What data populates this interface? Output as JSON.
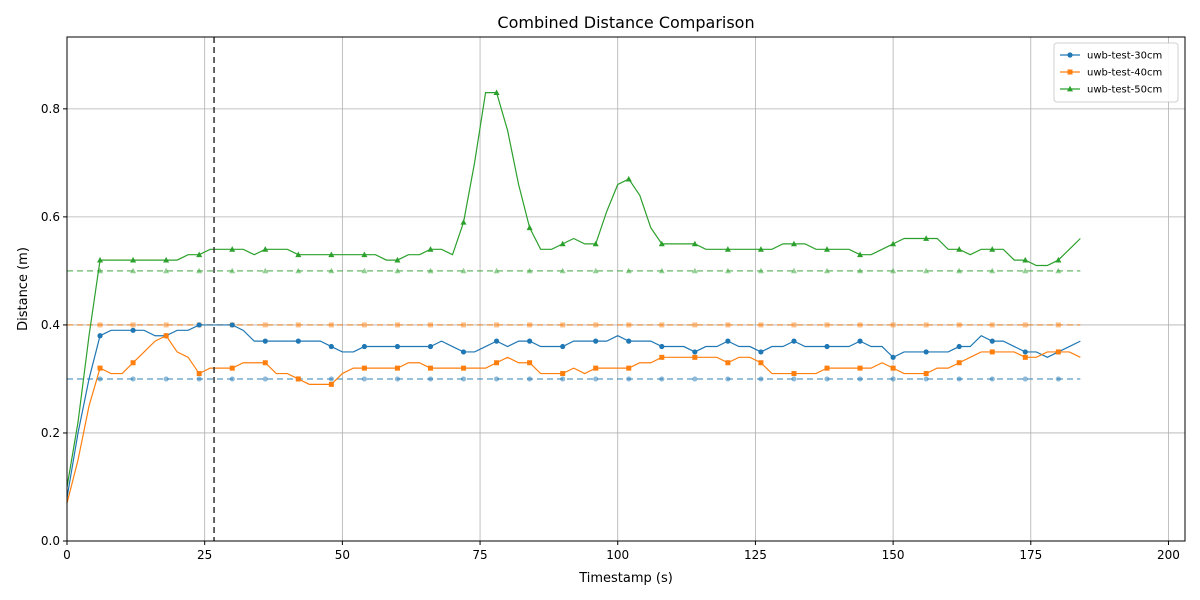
{
  "chart_data": {
    "type": "line",
    "title": "Combined Distance Comparison",
    "x_label": "Timestamp (s)",
    "y_label": "Distance (m)",
    "x": [
      0,
      2,
      4,
      6,
      8,
      10,
      12,
      14,
      16,
      18,
      20,
      22,
      24,
      26,
      28,
      30,
      32,
      34,
      36,
      38,
      40,
      42,
      44,
      46,
      48,
      50,
      52,
      54,
      56,
      58,
      60,
      62,
      64,
      66,
      68,
      70,
      72,
      74,
      76,
      78,
      80,
      82,
      84,
      86,
      88,
      90,
      92,
      94,
      96,
      98,
      100,
      102,
      104,
      106,
      108,
      110,
      112,
      114,
      116,
      118,
      120,
      122,
      124,
      126,
      128,
      130,
      132,
      134,
      136,
      138,
      140,
      142,
      144,
      146,
      148,
      150,
      152,
      154,
      156,
      158,
      160,
      162,
      164,
      166,
      168,
      170,
      172,
      174,
      176,
      178,
      180,
      182,
      184
    ],
    "series": [
      {
        "name": "uwb-test-30cm",
        "color": "#1f77b4",
        "marker": "circle",
        "values": [
          0.08,
          0.2,
          0.3,
          0.38,
          0.39,
          0.39,
          0.39,
          0.39,
          0.38,
          0.38,
          0.39,
          0.39,
          0.4,
          0.4,
          0.4,
          0.4,
          0.39,
          0.37,
          0.37,
          0.37,
          0.37,
          0.37,
          0.37,
          0.37,
          0.36,
          0.35,
          0.35,
          0.36,
          0.36,
          0.36,
          0.36,
          0.36,
          0.36,
          0.36,
          0.37,
          0.36,
          0.35,
          0.35,
          0.36,
          0.37,
          0.36,
          0.37,
          0.37,
          0.36,
          0.36,
          0.36,
          0.37,
          0.37,
          0.37,
          0.37,
          0.38,
          0.37,
          0.37,
          0.37,
          0.36,
          0.36,
          0.36,
          0.35,
          0.36,
          0.36,
          0.37,
          0.36,
          0.36,
          0.35,
          0.36,
          0.36,
          0.37,
          0.36,
          0.36,
          0.36,
          0.36,
          0.36,
          0.37,
          0.36,
          0.36,
          0.34,
          0.35,
          0.35,
          0.35,
          0.35,
          0.35,
          0.36,
          0.36,
          0.38,
          0.37,
          0.37,
          0.36,
          0.35,
          0.35,
          0.34,
          0.35,
          0.36,
          0.37
        ]
      },
      {
        "name": "uwb-test-40cm",
        "color": "#ff7f0e",
        "marker": "square",
        "values": [
          0.07,
          0.15,
          0.25,
          0.32,
          0.31,
          0.31,
          0.33,
          0.35,
          0.37,
          0.38,
          0.35,
          0.34,
          0.31,
          0.32,
          0.32,
          0.32,
          0.33,
          0.33,
          0.33,
          0.31,
          0.31,
          0.3,
          0.29,
          0.29,
          0.29,
          0.31,
          0.32,
          0.32,
          0.32,
          0.32,
          0.32,
          0.33,
          0.33,
          0.32,
          0.32,
          0.32,
          0.32,
          0.32,
          0.32,
          0.33,
          0.34,
          0.33,
          0.33,
          0.31,
          0.31,
          0.31,
          0.32,
          0.31,
          0.32,
          0.32,
          0.32,
          0.32,
          0.33,
          0.33,
          0.34,
          0.34,
          0.34,
          0.34,
          0.34,
          0.34,
          0.33,
          0.34,
          0.34,
          0.33,
          0.31,
          0.31,
          0.31,
          0.31,
          0.31,
          0.32,
          0.32,
          0.32,
          0.32,
          0.32,
          0.33,
          0.32,
          0.31,
          0.31,
          0.31,
          0.32,
          0.32,
          0.33,
          0.34,
          0.35,
          0.35,
          0.35,
          0.35,
          0.34,
          0.34,
          0.35,
          0.35,
          0.35,
          0.34
        ]
      },
      {
        "name": "uwb-test-50cm",
        "color": "#2ca02c",
        "marker": "triangle",
        "values": [
          0.1,
          0.22,
          0.38,
          0.52,
          0.52,
          0.52,
          0.52,
          0.52,
          0.52,
          0.52,
          0.52,
          0.53,
          0.53,
          0.54,
          0.54,
          0.54,
          0.54,
          0.53,
          0.54,
          0.54,
          0.54,
          0.53,
          0.53,
          0.53,
          0.53,
          0.53,
          0.53,
          0.53,
          0.53,
          0.52,
          0.52,
          0.53,
          0.53,
          0.54,
          0.54,
          0.53,
          0.59,
          0.7,
          0.83,
          0.83,
          0.76,
          0.66,
          0.58,
          0.54,
          0.54,
          0.55,
          0.56,
          0.55,
          0.55,
          0.61,
          0.66,
          0.67,
          0.64,
          0.58,
          0.55,
          0.55,
          0.55,
          0.55,
          0.54,
          0.54,
          0.54,
          0.54,
          0.54,
          0.54,
          0.54,
          0.55,
          0.55,
          0.55,
          0.54,
          0.54,
          0.54,
          0.54,
          0.53,
          0.53,
          0.54,
          0.55,
          0.56,
          0.56,
          0.56,
          0.56,
          0.54,
          0.54,
          0.53,
          0.54,
          0.54,
          0.54,
          0.52,
          0.52,
          0.51,
          0.51,
          0.52,
          0.54,
          0.56
        ]
      }
    ],
    "reference_lines": [
      {
        "value": 0.3,
        "color": "#1f77b4"
      },
      {
        "value": 0.4,
        "color": "#ff7f0e"
      },
      {
        "value": 0.5,
        "color": "#2ca02c"
      }
    ],
    "vertical_line": 26.7,
    "xlim": [
      0,
      203
    ],
    "ylim": [
      0,
      0.933
    ],
    "xticks": [
      0,
      25,
      50,
      75,
      100,
      125,
      150,
      175,
      200
    ],
    "yticks": [
      {
        "value": 0,
        "label": "0.0"
      },
      0.2,
      0.4,
      0.6,
      0.8
    ],
    "grid": true,
    "legend": "upper right"
  }
}
